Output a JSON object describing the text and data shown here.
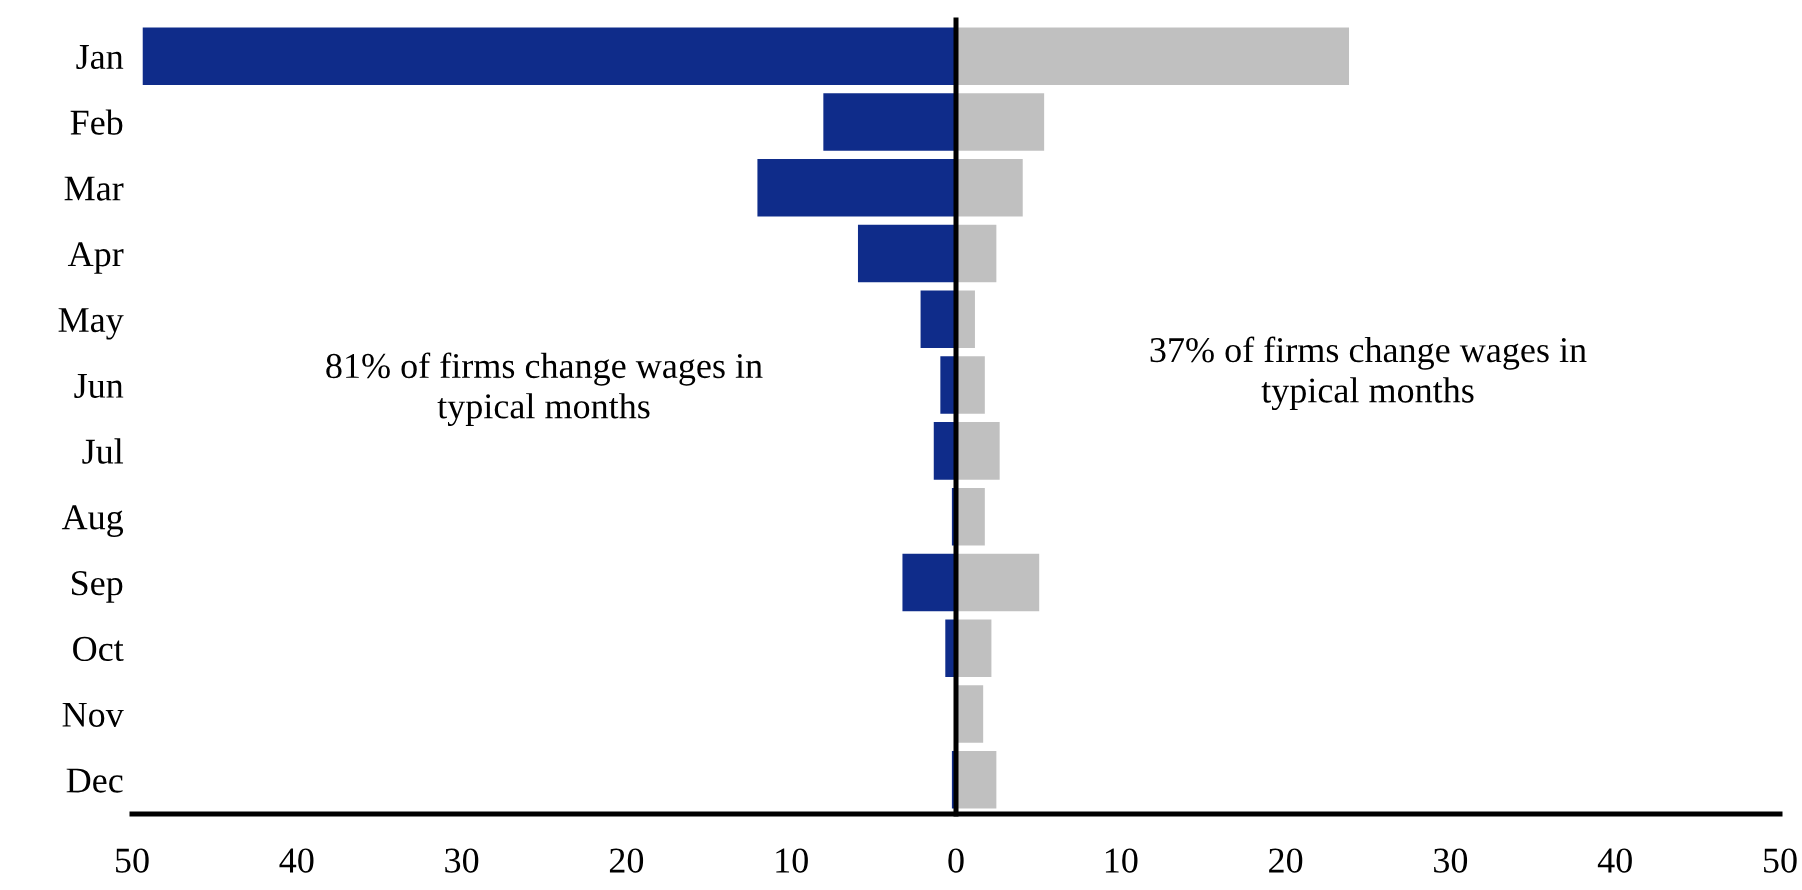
{
  "chart_data": {
    "type": "bar",
    "orientation": "horizontal",
    "categories": [
      "Jan",
      "Feb",
      "Mar",
      "Apr",
      "May",
      "Jun",
      "Jul",
      "Aug",
      "Sep",
      "Oct",
      "Nov",
      "Dec"
    ],
    "series": [
      {
        "color": "#0f2c8a",
        "values": [
          -49.4,
          -8.1,
          -12.1,
          -6.0,
          -2.2,
          -1.0,
          -1.4,
          -0.3,
          -3.3,
          -0.7,
          -0.1,
          -0.3
        ]
      },
      {
        "color": "#c0c0c0",
        "values": [
          23.9,
          5.4,
          4.1,
          2.5,
          1.2,
          1.8,
          2.7,
          1.8,
          5.1,
          2.2,
          1.7,
          2.5
        ]
      }
    ],
    "xlim": [
      -50,
      50
    ],
    "xticks": [
      {
        "value": -50,
        "label": "50"
      },
      {
        "value": -40,
        "label": "40"
      },
      {
        "value": -30,
        "label": "30"
      },
      {
        "value": -20,
        "label": "20"
      },
      {
        "value": -10,
        "label": "10"
      },
      0,
      10,
      20,
      30,
      40,
      50
    ],
    "annotations": [
      "81% of firms change wages in\ntypical months",
      "37% of firms change wages in\ntypical months"
    ],
    "stacked": true,
    "legend": false
  }
}
